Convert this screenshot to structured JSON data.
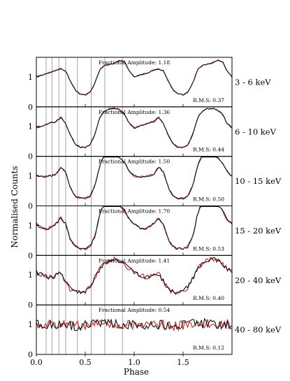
{
  "chart_data": {
    "type": "line",
    "xlabel": "Phase",
    "ylabel": "Normalised Counts",
    "xlim": [
      0.0,
      2.0
    ],
    "ylim": [
      0,
      1.65
    ],
    "x_ticks": [
      0.0,
      0.5,
      1.0,
      1.5
    ],
    "x_tick_labels": [
      "0.0",
      "0.5",
      "1.0",
      "1.5"
    ],
    "y_ticks": [
      0,
      1
    ],
    "y_tick_labels": [
      "0",
      "1"
    ],
    "grid": false,
    "phase_marker_lines": [
      0.1,
      0.16,
      0.23,
      0.3,
      0.42,
      0.56,
      0.7,
      0.88
    ],
    "series_colors": {
      "primary": "#d62020",
      "secondary": "#111111"
    },
    "panels": [
      {
        "band_label": "3 - 6 keV",
        "fractional_amplitude_text": "Fractional Amplitude: 1.18",
        "rms_text": "R.M.S: 0.37",
        "profile_phase": [
          0.0,
          0.05,
          0.1,
          0.15,
          0.2,
          0.25,
          0.3,
          0.35,
          0.4,
          0.45,
          0.5,
          0.55,
          0.6,
          0.65,
          0.7,
          0.75,
          0.8,
          0.85,
          0.9,
          0.95,
          1.0
        ],
        "profile_counts": [
          1.0,
          1.05,
          1.1,
          1.15,
          1.22,
          1.27,
          1.2,
          0.85,
          0.55,
          0.42,
          0.4,
          0.48,
          0.8,
          1.25,
          1.38,
          1.42,
          1.46,
          1.55,
          1.52,
          1.2,
          1.0
        ],
        "noise": 0.02
      },
      {
        "band_label": "6 - 10 keV",
        "fractional_amplitude_text": "Fractional Amplitude: 1.36",
        "rms_text": "R.M.S: 0.44",
        "profile_phase": [
          0.0,
          0.05,
          0.1,
          0.15,
          0.2,
          0.25,
          0.3,
          0.35,
          0.4,
          0.45,
          0.5,
          0.55,
          0.6,
          0.65,
          0.7,
          0.75,
          0.8,
          0.85,
          0.9,
          0.95,
          1.0
        ],
        "profile_counts": [
          0.95,
          1.0,
          1.05,
          1.12,
          1.15,
          1.3,
          1.1,
          0.7,
          0.4,
          0.3,
          0.3,
          0.38,
          0.75,
          1.3,
          1.52,
          1.58,
          1.6,
          1.55,
          1.42,
          1.1,
          0.95
        ],
        "noise": 0.025
      },
      {
        "band_label": "10 - 15 keV",
        "fractional_amplitude_text": "Fractional Amplitude: 1.50",
        "rms_text": "R.M.S: 0.50",
        "profile_phase": [
          0.0,
          0.05,
          0.1,
          0.15,
          0.2,
          0.25,
          0.3,
          0.35,
          0.4,
          0.45,
          0.5,
          0.55,
          0.6,
          0.65,
          0.7,
          0.75,
          0.8,
          0.85,
          0.9,
          0.95,
          1.0
        ],
        "profile_counts": [
          1.0,
          0.97,
          0.98,
          1.0,
          1.05,
          1.3,
          1.12,
          0.6,
          0.32,
          0.25,
          0.25,
          0.32,
          0.7,
          1.35,
          1.72,
          1.78,
          1.72,
          1.62,
          1.45,
          1.15,
          1.0
        ],
        "noise": 0.03
      },
      {
        "band_label": "15 - 20 keV",
        "fractional_amplitude_text": "Fractional Amplitude: 1.70",
        "rms_text": "R.M.S: 0.53",
        "profile_phase": [
          0.0,
          0.05,
          0.1,
          0.15,
          0.2,
          0.25,
          0.3,
          0.35,
          0.4,
          0.45,
          0.5,
          0.55,
          0.6,
          0.65,
          0.7,
          0.75,
          0.8,
          0.85,
          0.9,
          0.95,
          1.0
        ],
        "profile_counts": [
          1.05,
          0.92,
          0.88,
          0.95,
          1.05,
          1.25,
          1.05,
          0.5,
          0.28,
          0.22,
          0.22,
          0.3,
          0.65,
          1.4,
          1.8,
          1.85,
          1.8,
          1.7,
          1.5,
          1.2,
          1.05
        ],
        "noise": 0.045
      },
      {
        "band_label": "20 - 40 keV",
        "fractional_amplitude_text": "Fractional Amplitude: 1.41",
        "rms_text": "R.M.S: 0.40",
        "profile_phase": [
          0.0,
          0.05,
          0.1,
          0.15,
          0.2,
          0.25,
          0.3,
          0.35,
          0.4,
          0.45,
          0.5,
          0.55,
          0.6,
          0.65,
          0.7,
          0.75,
          0.8,
          0.85,
          0.9,
          0.95,
          1.0
        ],
        "profile_counts": [
          1.1,
          1.0,
          0.95,
          0.92,
          0.98,
          1.05,
          0.8,
          0.5,
          0.42,
          0.4,
          0.45,
          0.6,
          0.9,
          1.2,
          1.4,
          1.5,
          1.55,
          1.48,
          1.38,
          1.2,
          1.1
        ],
        "noise": 0.08
      },
      {
        "band_label": "40 - 80 keV",
        "fractional_amplitude_text": "Fractional Amplitude: 0.54",
        "rms_text": "R.M.S: 0.12",
        "profile_phase": [
          0.0,
          0.1,
          0.2,
          0.3,
          0.4,
          0.5,
          0.6,
          0.7,
          0.8,
          0.9,
          1.0
        ],
        "profile_counts": [
          1.0,
          1.0,
          1.02,
          0.98,
          0.95,
          0.98,
          1.02,
          1.03,
          1.02,
          1.0,
          1.0
        ],
        "noise": 0.16
      }
    ]
  }
}
